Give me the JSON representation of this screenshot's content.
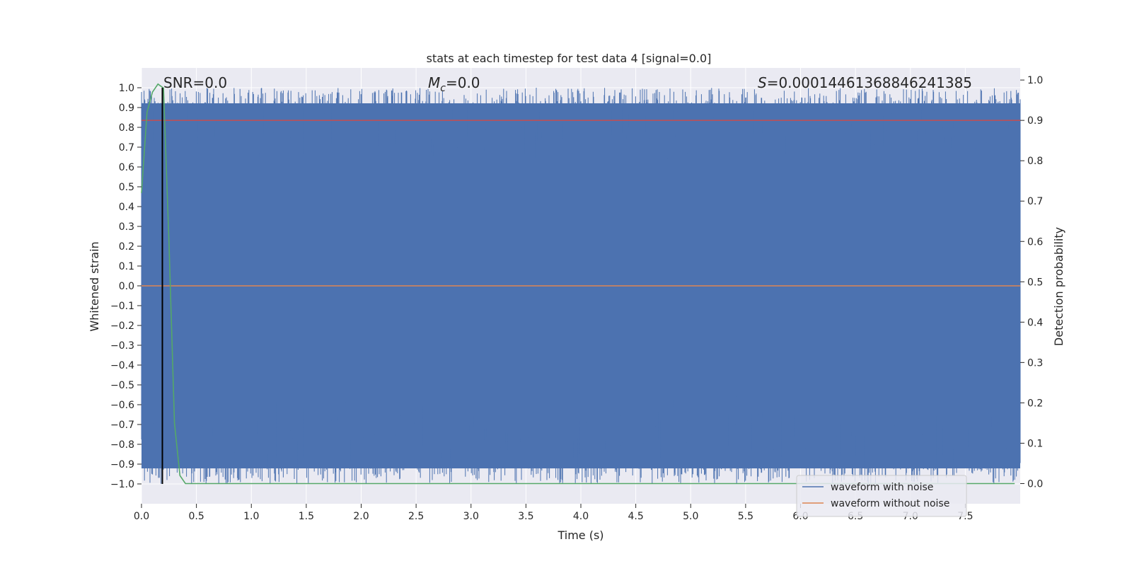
{
  "chart_data": {
    "type": "line",
    "title": "stats at each timestep for test data 4 [signal=0.0]",
    "xlabel": "Time (s)",
    "ylabel": "Whitened strain",
    "y2label": "Detection probability",
    "xlim": [
      0.0,
      8.0
    ],
    "ylim": [
      -1.1,
      1.1
    ],
    "y2lim": [
      -0.05,
      1.03
    ],
    "x_ticks": [
      "0.0",
      "0.5",
      "1.0",
      "1.5",
      "2.0",
      "2.5",
      "3.0",
      "3.5",
      "4.0",
      "4.5",
      "5.0",
      "5.5",
      "6.0",
      "6.5",
      "7.0",
      "7.5"
    ],
    "y_ticks": [
      "1.0",
      "0.9",
      "0.8",
      "0.7",
      "0.6",
      "0.5",
      "0.4",
      "0.3",
      "0.2",
      "0.1",
      "0.0",
      "−0.1",
      "−0.2",
      "−0.3",
      "−0.4",
      "−0.5",
      "−0.6",
      "−0.7",
      "−0.8",
      "−0.9",
      "−1.0"
    ],
    "y2_ticks": [
      "1.0",
      "0.9",
      "0.8",
      "0.7",
      "0.6",
      "0.5",
      "0.4",
      "0.3",
      "0.2",
      "0.1",
      "0.0"
    ],
    "grid": true,
    "legend_position": "bottom-right",
    "annotations": {
      "snr": "SNR=0.0",
      "mc_symbol": "M",
      "mc_sub": "c",
      "mc_value": "=0.0",
      "s_symbol": "S",
      "s_value": "=0.00014461368846241385"
    },
    "series": [
      {
        "name": "waveform with noise",
        "color": "#4c72b0",
        "style": "dense normalized noise between -1.0 and 1.0"
      },
      {
        "name": "waveform without noise",
        "color": "#dd8452",
        "values_note": "flat at 0.0"
      },
      {
        "color": "#c44e52",
        "axis": "right",
        "value": 0.9
      },
      {
        "color": "#55a868",
        "axis": "right",
        "x": [
          0.0,
          0.05,
          0.1,
          0.15,
          0.2,
          0.25,
          0.3,
          0.35,
          0.4,
          0.5,
          1.0,
          2.0,
          3.0,
          4.0,
          5.0,
          6.0,
          7.0,
          7.95
        ],
        "values": [
          0.72,
          0.92,
          0.97,
          0.99,
          0.98,
          0.6,
          0.15,
          0.02,
          0.0,
          0.0,
          0.0,
          0.0,
          0.0,
          0.0,
          0.0,
          0.0,
          0.0,
          0.0
        ]
      },
      {
        "color": "#000000",
        "type": "vline",
        "x": 0.19
      }
    ],
    "colors": {
      "background": "#eaeaf2",
      "grid": "#ffffff",
      "noise": "#4c72b0",
      "clean": "#dd8452",
      "threshold": "#c44e52",
      "probability": "#55a868",
      "marker": "#000000",
      "text": "#262626"
    }
  }
}
